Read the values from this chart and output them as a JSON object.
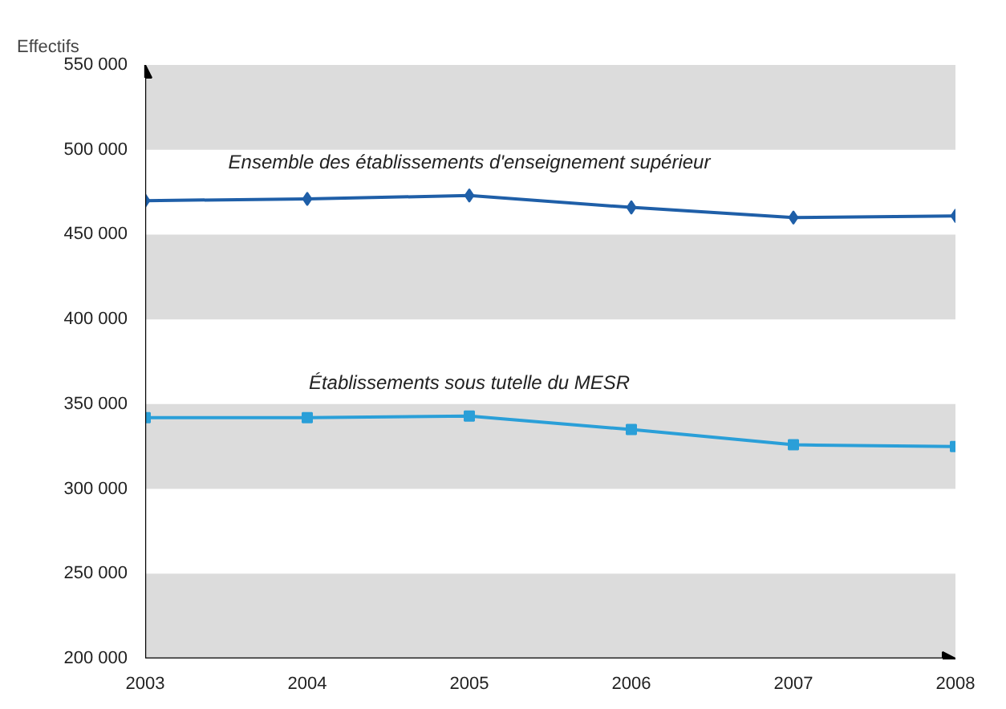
{
  "chart_data": {
    "type": "line",
    "ylabel": "Effectifs",
    "x": [
      2003,
      2004,
      2005,
      2006,
      2007,
      2008
    ],
    "series": [
      {
        "name": "Ensemble des établissements d'enseignement supérieur",
        "color": "#1f5fa8",
        "marker": "diamond",
        "values": [
          470000,
          471000,
          473000,
          466000,
          460000,
          461000
        ]
      },
      {
        "name": "Établissements sous tutelle du MESR",
        "color": "#2a9fd8",
        "marker": "square",
        "values": [
          342000,
          342000,
          343000,
          335000,
          326000,
          325000
        ]
      }
    ],
    "xlim": [
      2003,
      2008
    ],
    "xticks": [
      2003,
      2004,
      2005,
      2006,
      2007,
      2008
    ],
    "ylim": [
      200000,
      550000
    ],
    "yticks": [
      {
        "value": 200000,
        "label": "200 000"
      },
      {
        "value": 250000,
        "label": "250 000"
      },
      {
        "value": 300000,
        "label": "300 000"
      },
      {
        "value": 350000,
        "label": "350 000"
      },
      {
        "value": 400000,
        "label": "400 000"
      },
      {
        "value": 450000,
        "label": "450 000"
      },
      {
        "value": 500000,
        "label": "500 000"
      },
      {
        "value": 550000,
        "label": "550 000"
      }
    ],
    "bands": [
      {
        "axis": "y",
        "from": 500000,
        "to": 550000,
        "color": "#dcdcdc"
      },
      {
        "axis": "y",
        "from": 400000,
        "to": 450000,
        "color": "#dcdcdc"
      },
      {
        "axis": "y",
        "from": 300000,
        "to": 350000,
        "color": "#dcdcdc"
      },
      {
        "axis": "y",
        "from": 200000,
        "to": 250000,
        "color": "#dcdcdc"
      }
    ],
    "grid": false
  }
}
